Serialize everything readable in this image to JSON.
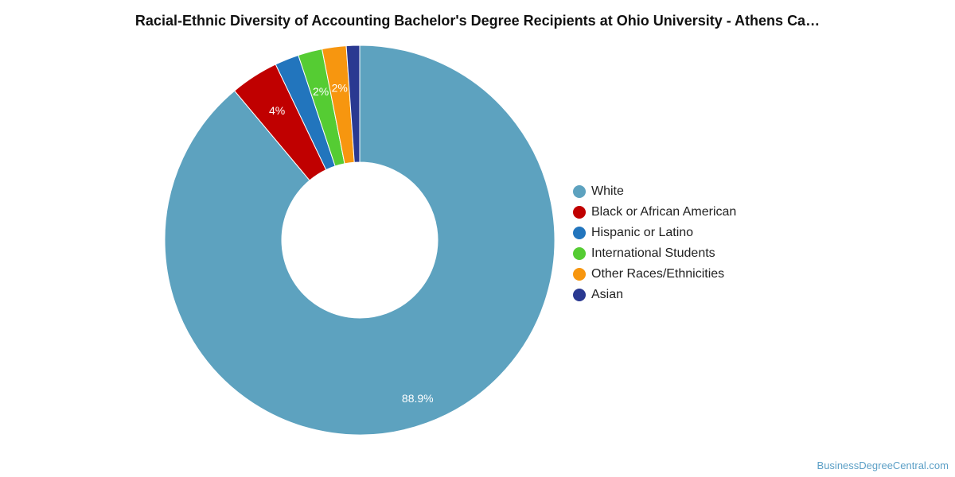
{
  "chart_data": {
    "type": "pie",
    "title": "Racial-Ethnic Diversity of Accounting Bachelor's Degree Recipients at Ohio University - Athens Ca…",
    "donut": true,
    "legend_position": "right",
    "slices": [
      {
        "label": "White",
        "value": 88.9,
        "data_label": "88.9%",
        "color": "#5da2bf"
      },
      {
        "label": "Black or African American",
        "value": 4.0,
        "data_label": "4%",
        "color": "#c00000"
      },
      {
        "label": "Hispanic or Latino",
        "value": 2.0,
        "data_label": "",
        "color": "#2275bd"
      },
      {
        "label": "International Students",
        "value": 2.0,
        "data_label": "2%",
        "color": "#55cc33"
      },
      {
        "label": "Other Races/Ethnicities",
        "value": 2.0,
        "data_label": "2%",
        "color": "#f7960f"
      },
      {
        "label": "Asian",
        "value": 1.1,
        "data_label": "",
        "color": "#2a3991"
      }
    ]
  },
  "footer": {
    "watermark": "BusinessDegreeCentral.com"
  }
}
